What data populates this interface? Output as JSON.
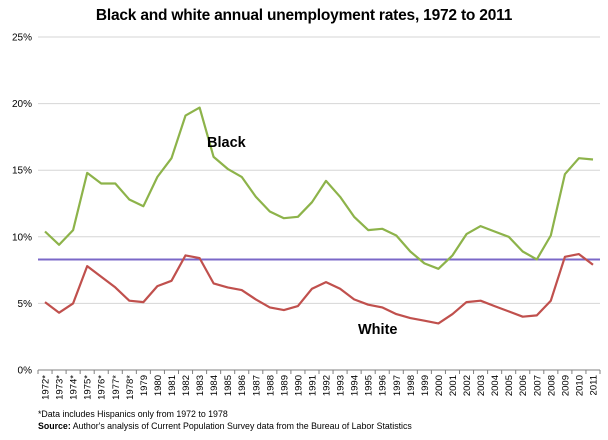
{
  "chart_data": {
    "type": "line",
    "title": "Black and white annual unemployment rates, 1972 to 2011",
    "xlabel": "",
    "ylabel": "",
    "ylim": [
      0,
      25
    ],
    "y_ticks": [
      "0%",
      "5%",
      "10%",
      "15%",
      "20%",
      "25%"
    ],
    "grid": "horizontal",
    "categories": [
      "1972*",
      "1973*",
      "1974*",
      "1975*",
      "1976*",
      "1977*",
      "1978*",
      "1979",
      "1980",
      "1981",
      "1982",
      "1983",
      "1984",
      "1985",
      "1986",
      "1987",
      "1988",
      "1989",
      "1990",
      "1991",
      "1992",
      "1993",
      "1994",
      "1995",
      "1996",
      "1997",
      "1998",
      "1999",
      "2000",
      "2001",
      "2002",
      "2003",
      "2004",
      "2005",
      "2006",
      "2007",
      "2008",
      "2009",
      "2010",
      "2011"
    ],
    "series": [
      {
        "name": "Black",
        "color": "#8db34a",
        "values": [
          10.4,
          9.4,
          10.5,
          14.8,
          14.0,
          14.0,
          12.8,
          12.3,
          14.5,
          15.9,
          19.1,
          19.7,
          16.0,
          15.1,
          14.5,
          13.0,
          11.9,
          11.4,
          11.5,
          12.6,
          14.2,
          13.0,
          11.5,
          10.5,
          10.6,
          10.1,
          8.9,
          8.0,
          7.6,
          8.6,
          10.2,
          10.8,
          10.4,
          10.0,
          8.9,
          8.3,
          10.1,
          14.7,
          15.9,
          15.8
        ]
      },
      {
        "name": "White",
        "color": "#c0504d",
        "values": [
          5.1,
          4.3,
          5.0,
          7.8,
          7.0,
          6.2,
          5.2,
          5.1,
          6.3,
          6.7,
          8.6,
          8.4,
          6.5,
          6.2,
          6.0,
          5.3,
          4.7,
          4.5,
          4.8,
          6.1,
          6.6,
          6.1,
          5.3,
          4.9,
          4.7,
          4.2,
          3.9,
          3.7,
          3.5,
          4.2,
          5.1,
          5.2,
          4.8,
          4.4,
          4.0,
          4.1,
          5.2,
          8.5,
          8.7,
          7.9
        ]
      }
    ],
    "reference_line": {
      "value": 8.3,
      "color": "#7b68c8"
    },
    "annotations": [
      {
        "text": "Black",
        "series": "Black"
      },
      {
        "text": "White",
        "series": "White"
      }
    ]
  },
  "footnote": "*Data includes Hispanics only from 1972 to 1978",
  "source": {
    "label": "Source:",
    "text": " Author's analysis of Current Population Survey data from the Bureau of Labor Statistics"
  }
}
